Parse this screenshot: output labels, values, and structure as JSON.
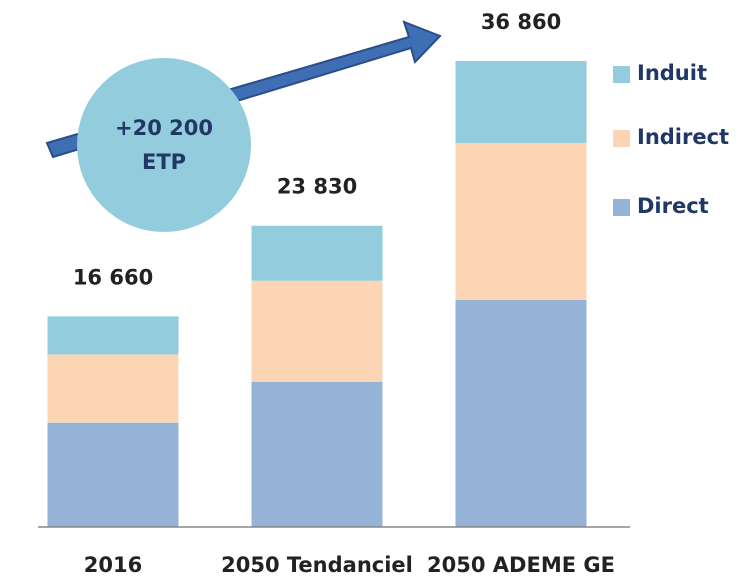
{
  "chart_data": {
    "type": "stacked_bar",
    "categories": [
      "2016",
      "2050 Tendanciel",
      "2050 ADEME GE"
    ],
    "series": [
      {
        "name": "Direct",
        "color": "#95b3d7",
        "values": [
          8250,
          11480,
          17960
        ]
      },
      {
        "name": "Indirect",
        "color": "#fcd5b5",
        "values": [
          5400,
          8000,
          12420
        ]
      },
      {
        "name": "Induit",
        "color": "#93cddd",
        "values": [
          3010,
          4350,
          6480
        ]
      }
    ],
    "totals": [
      16660,
      23830,
      36860
    ],
    "total_labels": [
      "16 660",
      "23 830",
      "36 860"
    ],
    "annotation": [
      "+20 200",
      "ETP"
    ],
    "legend": "right"
  }
}
